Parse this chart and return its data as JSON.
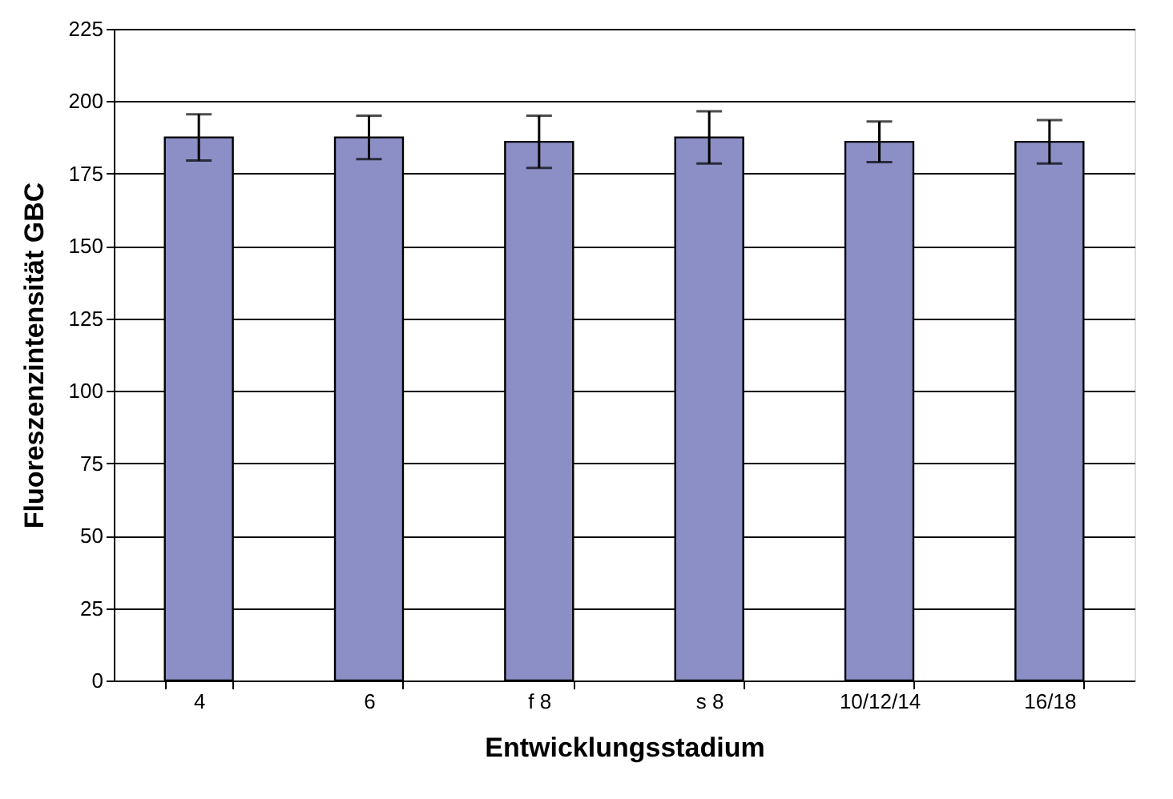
{
  "chart_data": {
    "type": "bar",
    "xlabel": "Entwicklungsstadium",
    "ylabel": "Fluoreszenzintensität GBC",
    "categories": [
      "4",
      "6",
      "f 8",
      "s 8",
      "10/12/14",
      "16/18"
    ],
    "values": [
      187.5,
      187.5,
      186,
      187.5,
      186,
      186
    ],
    "errors": [
      8,
      7.5,
      9,
      9,
      7,
      7.5
    ],
    "color": "#8b8fc6",
    "ylim": [
      0,
      225
    ],
    "yticks": [
      0,
      25,
      50,
      75,
      100,
      125,
      150,
      175,
      200,
      225
    ],
    "grid": "y"
  }
}
